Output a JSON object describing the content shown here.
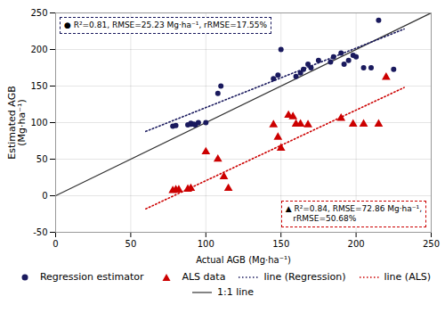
{
  "chart_data": {
    "type": "scatter",
    "xlabel": "Actual AGB (Mg·ha⁻¹)",
    "ylabel": "Estimated AGB\n(Mg·ha⁻¹)",
    "xlim": [
      0,
      250
    ],
    "ylim": [
      -50,
      250
    ],
    "xticks": [
      0,
      50,
      100,
      150,
      200,
      250
    ],
    "yticks": [
      -50,
      0,
      50,
      100,
      150,
      200,
      250
    ],
    "grid": true,
    "legend": "bottom",
    "series": [
      {
        "name": "Regression estimator",
        "type": "scatter",
        "marker": "circle",
        "color": "#1a1a5e",
        "x": [
          78,
          80,
          88,
          90,
          90,
          92,
          93,
          95,
          100,
          108,
          110,
          145,
          148,
          150,
          160,
          163,
          165,
          168,
          170,
          175,
          183,
          185,
          190,
          192,
          195,
          198,
          200,
          205,
          210,
          215,
          225
        ],
        "values": [
          95,
          96,
          97,
          98,
          99,
          98,
          97,
          100,
          100,
          140,
          150,
          160,
          165,
          200,
          163,
          168,
          173,
          180,
          175,
          185,
          183,
          190,
          195,
          180,
          185,
          192,
          190,
          175,
          175,
          240,
          173
        ]
      },
      {
        "name": "ALS data",
        "type": "scatter",
        "marker": "triangle",
        "color": "#cc0000",
        "x": [
          78,
          80,
          82,
          88,
          90,
          100,
          108,
          112,
          115,
          145,
          148,
          150,
          155,
          158,
          160,
          163,
          168,
          190,
          198,
          205,
          215,
          220
        ],
        "values": [
          7,
          8,
          8,
          9,
          10,
          60,
          50,
          26,
          10,
          97,
          80,
          65,
          110,
          108,
          98,
          98,
          97,
          106,
          98,
          98,
          98,
          162
        ]
      },
      {
        "name": "line (Regression)",
        "type": "line",
        "line_style": "dotted",
        "color": "#1a1a5e",
        "x": [
          60,
          232
        ],
        "values": [
          88,
          228
        ]
      },
      {
        "name": "line (ALS)",
        "type": "line",
        "line_style": "dotted",
        "color": "#cc0000",
        "x": [
          60,
          232
        ],
        "values": [
          -18,
          148
        ]
      },
      {
        "name": "1:1 line",
        "type": "line",
        "line_style": "solid",
        "color": "#333333",
        "x": [
          0,
          250
        ],
        "values": [
          0,
          250
        ]
      }
    ],
    "annotations": [
      {
        "text": "● R²=0.81, RMSE=25.23 Mg·ha⁻¹, rRMSE=17.55%",
        "color": "#1a1a5e"
      },
      {
        "text": "▲ R²=0.84, RMSE=72.86 Mg·ha⁻¹,\n   rRMSE=50.68%",
        "color": "#cc0000"
      }
    ]
  }
}
